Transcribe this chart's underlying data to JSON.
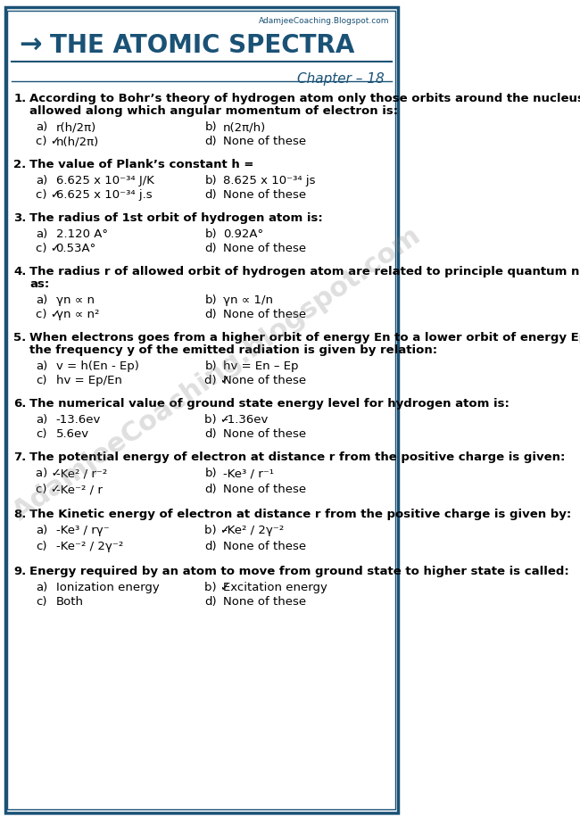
{
  "title": "THE ATOMIC SPECTRA",
  "arrow": "→",
  "chapter": "Chapter – 18",
  "website": "AdamjeeCoaching.Blogspot.com",
  "bg_color": "#ffffff",
  "border_color": "#1a5276",
  "title_color": "#1a5276",
  "text_color": "#000000",
  "questions": [
    {
      "num": "1.",
      "question": "According to Bohr’s theory of hydrogen atom only those orbits around the nucleus\nallowed along which angular momentum of electron is:",
      "options": [
        [
          "a)",
          "r(h/2π)",
          "b)",
          "n(2π/h)"
        ],
        [
          "c) ✓",
          "n(h/2π)",
          "d)",
          "None of these"
        ]
      ],
      "correct": "c"
    },
    {
      "num": "2.",
      "question": "The value of Plank’s constant h =",
      "bold_question": true,
      "options": [
        [
          "a)",
          "6.625 x 10⁻³⁴ J/K",
          "b)",
          "8.625 x 10⁻³⁴ js"
        ],
        [
          "c) ✓",
          "6.625 x 10⁻³⁴ j.s",
          "d)",
          "None of these"
        ]
      ],
      "correct": "c"
    },
    {
      "num": "3.",
      "question": "The radius of 1st orbit of hydrogen atom is:",
      "bold_question": true,
      "options": [
        [
          "a)",
          "2.120 A°",
          "b)",
          "0.92A°"
        ],
        [
          "c) ✓",
          "0.53A°",
          "d)",
          "None of these"
        ]
      ],
      "correct": "c"
    },
    {
      "num": "4.",
      "question": "The radius r of allowed orbit of hydrogen atom are related to principle quantum number\nas:",
      "options": [
        [
          "a)",
          "γn ∝ n",
          "b)",
          "γn ∝ 1/n"
        ],
        [
          "c) ✓",
          "γn ∝ n²",
          "d)",
          "None of these"
        ]
      ],
      "correct": "c"
    },
    {
      "num": "5.",
      "question": "When electrons goes from a higher orbit of energy En to a lower orbit of energy Ep then\nthe frequency y of the emitted radiation is given by relation:",
      "options": [
        [
          "a)",
          "v = h(En - Ep)",
          "b)",
          "hv = En – Ep"
        ],
        [
          "c)",
          "hv = Ep/En",
          "d) ✓",
          "None of these"
        ]
      ],
      "correct": "d"
    },
    {
      "num": "6.",
      "question": "The numerical value of ground state energy level for hydrogen atom is:",
      "bold_question": true,
      "options": [
        [
          "a)",
          "-13.6ev",
          "b) ✓",
          "-1.36ev"
        ],
        [
          "c)",
          "5.6ev",
          "d)",
          "None of these"
        ]
      ],
      "correct": "b"
    },
    {
      "num": "7.",
      "question": "The potential energy of electron at distance r from the positive charge is given:",
      "options_special": true,
      "opt_a": "a) ✓",
      "opt_a_val": "-Ke² / r⁻²",
      "opt_b": "b)",
      "opt_b_val": "-Ke³ / r⁻¹",
      "opt_c": "c) ✓",
      "opt_c_val": "-Ke⁻² / r",
      "opt_d": "d)",
      "opt_d_val": "None of these"
    },
    {
      "num": "8.",
      "question": "The Kinetic energy of electron at distance r from the positive charge is given by:",
      "bold_question": true,
      "options_special": true,
      "opt_a": "a)",
      "opt_a_val": "-Ke³ / rγ⁻",
      "opt_b": "b) ✓",
      "opt_b_val": "-Ke² / 2γ⁻²",
      "opt_c": "c)",
      "opt_c_val": "-Ke⁻² / 2γ⁻²",
      "opt_d": "d)",
      "opt_d_val": "None of these"
    },
    {
      "num": "9.",
      "question": "Energy required by an atom to move from ground state to higher state is called:",
      "bold_question": true,
      "options": [
        [
          "a)",
          "Ionization energy",
          "b) ✓",
          "Excitation energy"
        ],
        [
          "c)",
          "Both",
          "d)",
          "None of these"
        ]
      ],
      "correct": "b"
    }
  ]
}
